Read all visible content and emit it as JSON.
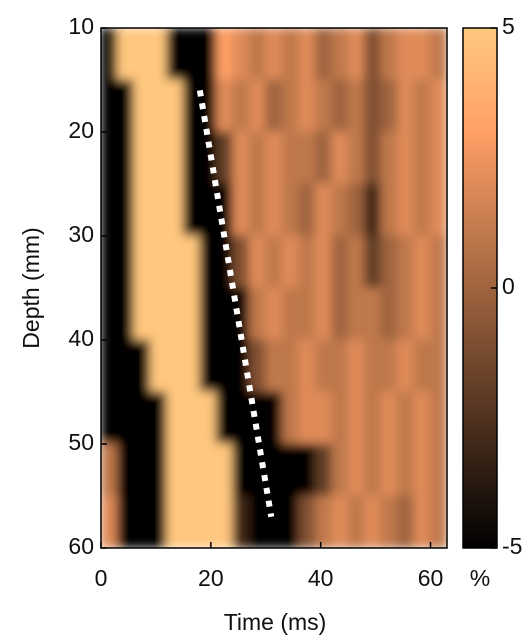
{
  "chart_data": {
    "type": "heatmap",
    "x_label": "Time (ms)",
    "y_label": "Depth (mm)",
    "xlim": [
      0,
      63
    ],
    "ylim": [
      10,
      60
    ],
    "y_reversed": true,
    "xticks": [
      0,
      20,
      40,
      60
    ],
    "yticks": [
      10,
      20,
      30,
      40,
      50,
      60
    ],
    "colormap": "copper",
    "x_edges": [
      0,
      3,
      6,
      9,
      12,
      15,
      18,
      21,
      24,
      27,
      30,
      33,
      36,
      39,
      42,
      45,
      48,
      51,
      54,
      57,
      60,
      63
    ],
    "y_edges": [
      10,
      15,
      20,
      25,
      30,
      35,
      40,
      45,
      50,
      55,
      60
    ],
    "z": [
      [
        -5,
        5,
        5,
        5,
        -5,
        -5,
        -5,
        3,
        2,
        1,
        2,
        1,
        2,
        0,
        1,
        2,
        -1,
        1,
        2,
        2,
        1
      ],
      [
        -5,
        -5,
        5,
        5,
        5,
        -5,
        -5,
        2,
        1,
        2,
        0,
        1,
        2,
        1,
        0,
        1,
        -1,
        0,
        2,
        1,
        2
      ],
      [
        -5,
        -5,
        5,
        5,
        5,
        -5,
        -5,
        -2,
        2,
        1,
        2,
        1,
        1,
        0,
        2,
        1,
        -1,
        1,
        2,
        1,
        2
      ],
      [
        -5,
        -5,
        5,
        5,
        5,
        -5,
        -5,
        -5,
        2,
        1,
        2,
        1,
        0,
        2,
        1,
        0,
        -3,
        1,
        2,
        1,
        2
      ],
      [
        -5,
        -5,
        5,
        5,
        5,
        5,
        -5,
        -5,
        -1,
        2,
        1,
        2,
        1,
        2,
        0,
        1,
        -2,
        0,
        1,
        2,
        1
      ],
      [
        -5,
        -5,
        5,
        5,
        5,
        5,
        -5,
        -5,
        -5,
        1,
        2,
        1,
        1,
        2,
        0,
        1,
        1,
        0,
        1,
        2,
        1
      ],
      [
        -5,
        -5,
        -5,
        5,
        5,
        5,
        -5,
        -5,
        -5,
        -1,
        1,
        1,
        2,
        1,
        1,
        2,
        1,
        1,
        2,
        1,
        1
      ],
      [
        -5,
        -5,
        -5,
        -5,
        5,
        5,
        5,
        -5,
        -5,
        -5,
        -5,
        1,
        2,
        2,
        1,
        2,
        1,
        2,
        1,
        2,
        1
      ],
      [
        1,
        -5,
        -5,
        -5,
        5,
        5,
        5,
        5,
        -5,
        -5,
        -5,
        -5,
        -5,
        -2,
        1,
        2,
        1,
        2,
        1,
        2,
        1
      ],
      [
        2,
        -5,
        -5,
        -5,
        5,
        5,
        5,
        5,
        -3,
        -5,
        -5,
        -5,
        -1,
        1,
        2,
        1,
        2,
        1,
        0,
        2,
        1
      ]
    ],
    "overlay": {
      "x": [
        18,
        31
      ],
      "y": [
        16,
        57
      ],
      "color": "#ffffff",
      "style": "dotted"
    },
    "colorbar": {
      "lim": [
        -5,
        5
      ],
      "ticks": [
        -5,
        0,
        5
      ],
      "label": "%"
    }
  }
}
